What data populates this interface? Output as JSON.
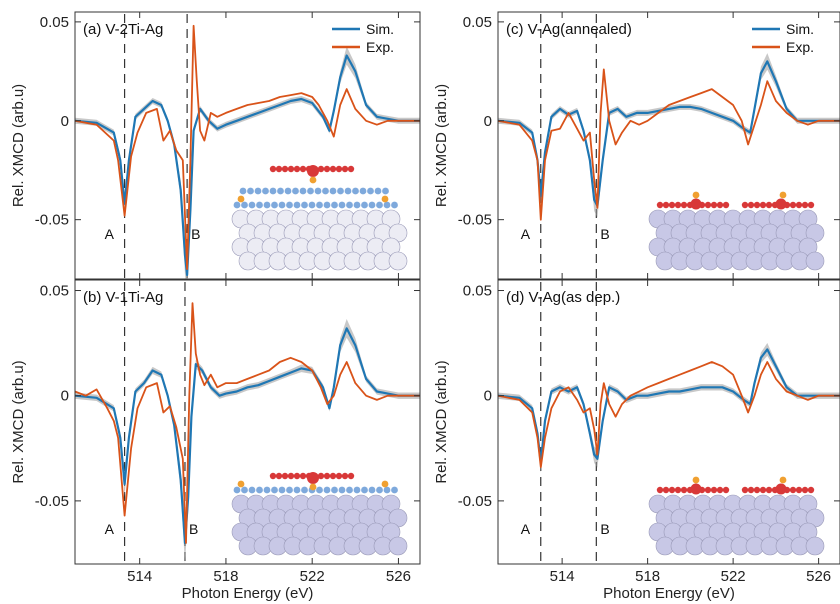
{
  "figure": {
    "xlabel": "Photon Energy (eV)",
    "ylabel": "Rel. XMCD (arb.u)"
  },
  "colors": {
    "sim": "#1f77b4",
    "exp": "#d95319",
    "band": "#9a9a9a",
    "atom_red": "#d83838",
    "atom_blue": "#7ea9dc",
    "atom_gold": "#f0a030",
    "substrate": "#c8c8e6"
  },
  "legend": [
    {
      "label": "Sim.",
      "color": "#1f77b4"
    },
    {
      "label": "Exp.",
      "color": "#d95319"
    }
  ],
  "markers": [
    {
      "label": "A",
      "energy": 513.3
    },
    {
      "label": "B",
      "energy": 516.2
    }
  ],
  "chart_data": [
    {
      "type": "line",
      "panel": "a",
      "title": "(a) V-2Ti-Ag",
      "xlim": [
        511,
        527
      ],
      "ylim": [
        -0.08,
        0.055
      ],
      "xticks": [
        514,
        518,
        522,
        526
      ],
      "yticks": [
        0.05,
        0,
        -0.05
      ],
      "ytick_labels": [
        "0.05",
        "0",
        "-0.05"
      ],
      "legend": true,
      "markers": [
        {
          "label": "A",
          "x": 513.3
        },
        {
          "label": "B",
          "x": 516.2
        }
      ],
      "series": [
        {
          "name": "Sim.",
          "x": [
            511,
            512,
            512.8,
            513.1,
            513.3,
            513.5,
            513.8,
            514.2,
            514.6,
            515.0,
            515.3,
            515.6,
            515.9,
            516.1,
            516.2,
            516.35,
            516.5,
            516.8,
            517.2,
            517.6,
            518.0,
            518.5,
            519,
            519.5,
            520,
            520.5,
            521,
            521.5,
            522,
            522.5,
            522.8,
            523.0,
            523.3,
            523.6,
            524.0,
            524.5,
            525,
            525.5,
            526,
            527
          ],
          "y": [
            0,
            -0.001,
            -0.006,
            -0.02,
            -0.042,
            -0.02,
            0.002,
            0.006,
            0.01,
            0.008,
            0,
            -0.012,
            -0.035,
            -0.068,
            -0.078,
            -0.045,
            -0.005,
            0.006,
            0.0,
            -0.004,
            -0.002,
            0.0,
            0.002,
            0.004,
            0.006,
            0.008,
            0.01,
            0.011,
            0.009,
            0.002,
            -0.005,
            0.005,
            0.022,
            0.033,
            0.025,
            0.008,
            0.002,
            0.001,
            0.0,
            0
          ]
        },
        {
          "name": "Exp.",
          "x": [
            511,
            512,
            512.8,
            513.0,
            513.3,
            513.6,
            513.9,
            514.3,
            514.8,
            515.1,
            515.4,
            515.7,
            516.0,
            516.2,
            516.35,
            516.5,
            516.65,
            516.8,
            517.0,
            517.3,
            517.6,
            518.0,
            518.5,
            519,
            519.5,
            520,
            520.5,
            521,
            521.5,
            522,
            522.3,
            522.7,
            523.0,
            523.3,
            523.6,
            524.0,
            524.5,
            525,
            525.5,
            526,
            527
          ],
          "y": [
            0,
            -0.002,
            -0.01,
            -0.02,
            -0.048,
            -0.018,
            -0.006,
            0.004,
            0.006,
            -0.01,
            -0.005,
            -0.015,
            -0.02,
            -0.075,
            -0.02,
            0.048,
            0.02,
            -0.005,
            -0.01,
            0.004,
            0.002,
            0.004,
            0.006,
            0.008,
            0.009,
            0.01,
            0.012,
            0.013,
            0.014,
            0.012,
            0.008,
            0.0,
            -0.008,
            0.008,
            0.016,
            0.006,
            0.0,
            -0.002,
            0.0,
            0.0,
            0
          ]
        }
      ]
    },
    {
      "type": "line",
      "panel": "c",
      "title": "(c) V-Ag(annealed)",
      "xlim": [
        511,
        527
      ],
      "ylim": [
        -0.08,
        0.055
      ],
      "xticks": [
        514,
        518,
        522,
        526
      ],
      "yticks": [
        0.05,
        0,
        -0.05
      ],
      "ytick_labels": [
        "0.05",
        "0",
        "-0.05"
      ],
      "legend": true,
      "markers": [
        {
          "label": "A",
          "x": 513.0
        },
        {
          "label": "B",
          "x": 515.6
        }
      ],
      "series": [
        {
          "name": "Sim.",
          "x": [
            511,
            512,
            512.6,
            512.85,
            513.0,
            513.2,
            513.5,
            513.9,
            514.3,
            514.7,
            515.0,
            515.3,
            515.5,
            515.65,
            515.9,
            516.2,
            516.6,
            517.0,
            517.5,
            518,
            518.5,
            519,
            519.5,
            520,
            520.5,
            521,
            521.5,
            522,
            522.5,
            522.8,
            523.0,
            523.3,
            523.6,
            524.0,
            524.5,
            525,
            525.5,
            526,
            527
          ],
          "y": [
            0,
            -0.001,
            -0.006,
            -0.02,
            -0.038,
            -0.016,
            0.002,
            0.006,
            0.003,
            0.005,
            -0.005,
            -0.02,
            -0.04,
            -0.043,
            -0.02,
            0.004,
            0.006,
            0.002,
            0.004,
            0.004,
            0.005,
            0.006,
            0.007,
            0.007,
            0.006,
            0.004,
            0.002,
            0.0,
            -0.004,
            -0.006,
            0.006,
            0.024,
            0.03,
            0.02,
            0.006,
            0.0,
            0.0,
            0.0,
            0
          ]
        },
        {
          "name": "Exp.",
          "x": [
            511,
            512,
            512.6,
            512.85,
            513.0,
            513.2,
            513.5,
            513.9,
            514.3,
            514.7,
            515.0,
            515.3,
            515.5,
            515.65,
            515.8,
            515.95,
            516.2,
            516.5,
            516.8,
            517.2,
            517.6,
            518,
            518.5,
            519,
            519.5,
            520,
            520.5,
            521,
            521.5,
            522,
            522.4,
            522.7,
            523.0,
            523.3,
            523.6,
            524.0,
            524.5,
            525,
            525.5,
            526,
            527
          ],
          "y": [
            0,
            -0.002,
            -0.01,
            -0.02,
            -0.05,
            -0.02,
            -0.005,
            -0.004,
            0.004,
            -0.004,
            -0.01,
            -0.006,
            -0.03,
            -0.044,
            0.004,
            0.026,
            0.0,
            -0.012,
            -0.006,
            0.0,
            -0.002,
            0.0,
            0.004,
            0.008,
            0.01,
            0.012,
            0.014,
            0.016,
            0.012,
            0.008,
            0.0,
            -0.012,
            -0.002,
            0.008,
            0.02,
            0.01,
            0.004,
            0.0,
            -0.002,
            0.0,
            0
          ]
        }
      ]
    },
    {
      "type": "line",
      "panel": "b",
      "title": "(b) V-1Ti-Ag",
      "xlim": [
        511,
        527
      ],
      "ylim": [
        -0.08,
        0.055
      ],
      "xticks": [
        514,
        518,
        522,
        526
      ],
      "yticks": [
        0.05,
        0,
        -0.05
      ],
      "ytick_labels": [
        "0.05",
        "0",
        "-0.05"
      ],
      "legend": false,
      "markers": [
        {
          "label": "A",
          "x": 513.3
        },
        {
          "label": "B",
          "x": 516.1
        }
      ],
      "series": [
        {
          "name": "Sim.",
          "x": [
            511,
            512,
            512.8,
            513.1,
            513.3,
            513.5,
            513.8,
            514.2,
            514.6,
            515.0,
            515.3,
            515.6,
            515.9,
            516.1,
            516.25,
            516.4,
            516.6,
            516.9,
            517.3,
            517.7,
            518,
            518.5,
            519,
            519.5,
            520,
            520.5,
            521,
            521.5,
            522,
            522.5,
            522.8,
            523.0,
            523.3,
            523.6,
            524.0,
            524.5,
            525,
            525.5,
            526,
            527
          ],
          "y": [
            0,
            -0.001,
            -0.006,
            -0.02,
            -0.042,
            -0.02,
            0.002,
            0.006,
            0.012,
            0.01,
            0.0,
            -0.014,
            -0.04,
            -0.07,
            -0.048,
            -0.01,
            0.015,
            0.012,
            0.004,
            0.0,
            0.001,
            0.002,
            0.004,
            0.005,
            0.007,
            0.009,
            0.011,
            0.013,
            0.012,
            0.004,
            -0.006,
            0.004,
            0.024,
            0.032,
            0.024,
            0.008,
            0.002,
            0.001,
            0.0,
            0
          ]
        },
        {
          "name": "Exp.",
          "x": [
            511,
            511.5,
            512,
            512.5,
            512.8,
            513.0,
            513.3,
            513.6,
            513.9,
            514.3,
            514.8,
            515.1,
            515.4,
            515.7,
            516.0,
            516.15,
            516.3,
            516.45,
            516.6,
            516.8,
            517.0,
            517.3,
            517.6,
            518,
            518.5,
            519,
            519.5,
            520,
            520.5,
            521,
            521.5,
            522,
            522.4,
            522.7,
            523.0,
            523.3,
            523.6,
            524.0,
            524.5,
            525,
            525.5,
            526,
            527
          ],
          "y": [
            0.002,
            0.0,
            0.003,
            -0.006,
            -0.012,
            -0.02,
            -0.057,
            -0.025,
            -0.006,
            0.004,
            0.006,
            -0.008,
            -0.005,
            -0.015,
            -0.03,
            -0.07,
            0.0,
            0.044,
            0.02,
            0.01,
            0.005,
            0.01,
            0.004,
            0.006,
            0.006,
            0.008,
            0.01,
            0.012,
            0.016,
            0.018,
            0.016,
            0.012,
            0.004,
            -0.004,
            0.0,
            0.01,
            0.016,
            0.006,
            0.0,
            -0.002,
            0.0,
            0.0,
            0
          ]
        }
      ]
    },
    {
      "type": "line",
      "panel": "d",
      "title": "(d) V-Ag(as dep.)",
      "xlim": [
        511,
        527
      ],
      "ylim": [
        -0.08,
        0.055
      ],
      "xticks": [
        514,
        518,
        522,
        526
      ],
      "yticks": [
        0.05,
        0,
        -0.05
      ],
      "ytick_labels": [
        "0.05",
        "0",
        "-0.05"
      ],
      "legend": false,
      "markers": [
        {
          "label": "A",
          "x": 513.0
        },
        {
          "label": "B",
          "x": 515.6
        }
      ],
      "series": [
        {
          "name": "Sim.",
          "x": [
            511,
            512,
            512.6,
            512.85,
            513.0,
            513.2,
            513.5,
            513.9,
            514.3,
            514.7,
            515.0,
            515.3,
            515.5,
            515.65,
            515.9,
            516.2,
            516.6,
            517.0,
            517.5,
            518,
            518.5,
            519,
            519.5,
            520,
            520.5,
            521,
            521.5,
            522,
            522.5,
            522.8,
            523.0,
            523.3,
            523.6,
            524.0,
            524.5,
            525,
            525.5,
            526,
            527
          ],
          "y": [
            0,
            -0.001,
            -0.006,
            -0.018,
            -0.032,
            -0.012,
            0.002,
            0.004,
            0.002,
            0.004,
            -0.004,
            -0.018,
            -0.028,
            -0.03,
            -0.012,
            0.004,
            0.002,
            -0.002,
            0.0,
            0.0,
            0.001,
            0.002,
            0.002,
            0.003,
            0.004,
            0.004,
            0.004,
            0.002,
            -0.002,
            -0.004,
            0.006,
            0.018,
            0.022,
            0.014,
            0.004,
            0.0,
            0.0,
            0.0,
            0
          ]
        },
        {
          "name": "Exp.",
          "x": [
            511,
            512,
            512.6,
            512.85,
            513.0,
            513.2,
            513.5,
            513.9,
            514.3,
            514.7,
            515.0,
            515.3,
            515.5,
            515.65,
            515.8,
            515.95,
            516.2,
            516.5,
            516.8,
            517.2,
            517.6,
            518,
            518.5,
            519,
            519.5,
            520,
            520.5,
            521,
            521.5,
            522,
            522.4,
            522.7,
            523.0,
            523.3,
            523.6,
            524.0,
            524.5,
            525,
            525.5,
            526,
            527
          ],
          "y": [
            0,
            -0.002,
            -0.008,
            -0.02,
            -0.034,
            -0.02,
            -0.006,
            0.002,
            0.004,
            -0.002,
            -0.008,
            -0.006,
            -0.016,
            -0.028,
            -0.004,
            0.006,
            -0.004,
            -0.01,
            -0.004,
            0.0,
            0.002,
            0.004,
            0.006,
            0.008,
            0.01,
            0.012,
            0.014,
            0.016,
            0.014,
            0.01,
            0.0,
            -0.008,
            0.0,
            0.01,
            0.016,
            0.008,
            0.002,
            0.0,
            -0.002,
            0.0,
            0
          ]
        }
      ]
    }
  ]
}
